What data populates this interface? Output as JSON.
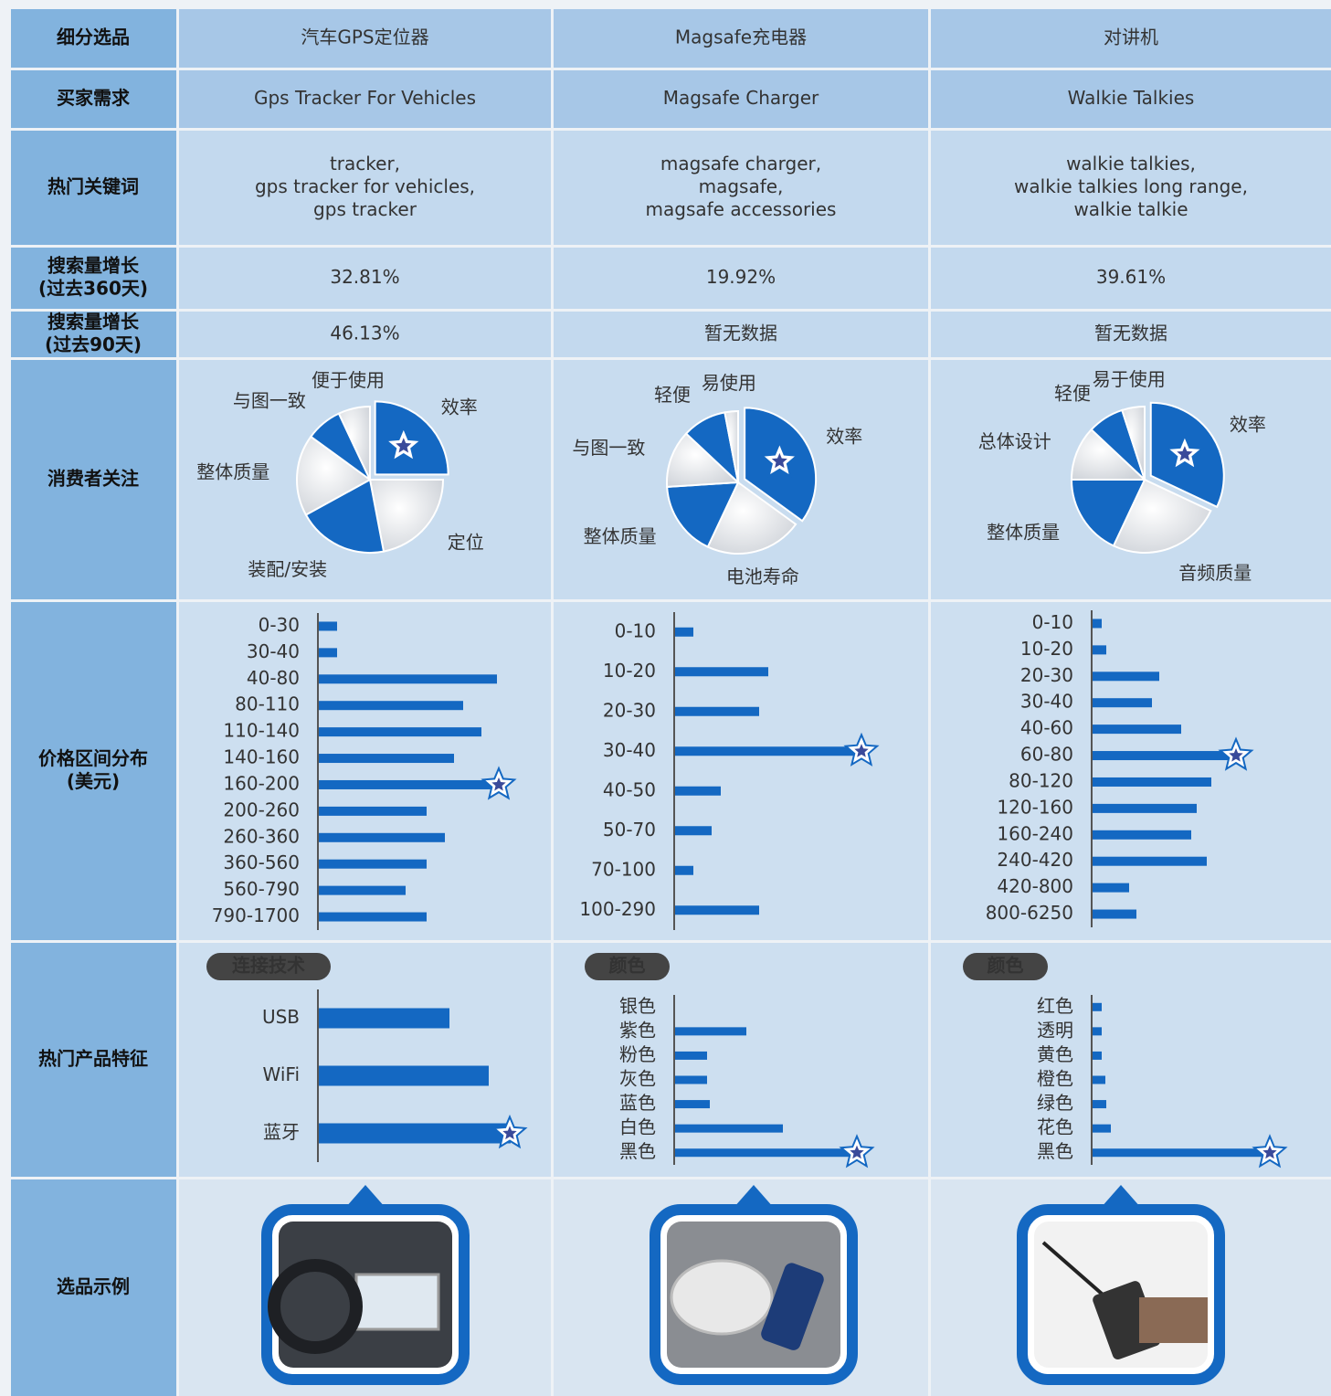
{
  "table": {
    "row_headers": [
      [
        "细分选品"
      ],
      [
        "买家需求"
      ],
      [
        "热门关键词"
      ],
      [
        "搜索量增长",
        "(过去360天)"
      ],
      [
        "搜索量增长",
        "(过去90天)"
      ],
      [
        "消费者关注"
      ],
      [
        "价格区间分布",
        "(美元)"
      ],
      [
        "热门产品特征"
      ],
      [
        "选品示例"
      ]
    ],
    "columns": [
      {
        "name": "汽车GPS定位器",
        "demand": "Gps Tracker For Vehicles",
        "keywords": [
          "tracker,",
          "gps tracker for vehicles,",
          "gps tracker"
        ],
        "growth_360": "32.81%",
        "growth_90": "46.13%",
        "focus": {
          "type": "pie",
          "categories": [
            "效率",
            "定位",
            "装配/安装",
            "整体质量",
            "与图一致",
            "便于使用"
          ],
          "values": [
            25,
            22,
            20,
            18,
            8,
            7
          ],
          "colors": [
            "#1468c2",
            "#e4e6ea",
            "#1468c2",
            "#e4e6ea",
            "#1468c2",
            "#e4e6ea"
          ]
        },
        "price": {
          "type": "bar",
          "categories": [
            "0-30",
            "30-40",
            "40-80",
            "80-110",
            "110-140",
            "140-160",
            "160-200",
            "200-260",
            "260-360",
            "360-560",
            "560-790",
            "790-1700"
          ],
          "values": [
            20,
            20,
            195,
            158,
            178,
            148,
            198,
            118,
            138,
            118,
            95,
            118
          ],
          "xlim": [
            0,
            220
          ],
          "color": "#1468c2"
        },
        "features": {
          "title": "连接技术",
          "type": "bar",
          "categories": [
            "USB",
            "WiFi",
            "蓝牙"
          ],
          "values": [
            143,
            186,
            210
          ],
          "xlim": [
            0,
            220
          ],
          "color": "#1468c2"
        }
      },
      {
        "name": "Magsafe充电器",
        "demand": "Magsafe Charger",
        "keywords": [
          "magsafe charger,",
          "magsafe,",
          "magsafe accessories"
        ],
        "growth_360": "19.92%",
        "growth_90": "暂无数据",
        "focus": {
          "type": "pie",
          "categories": [
            "效率",
            "电池寿命",
            "整体质量",
            "与图一致",
            "轻便",
            "易使用"
          ],
          "values": [
            35,
            22,
            17,
            13,
            10,
            3
          ],
          "colors": [
            "#1468c2",
            "#e4e6ea",
            "#1468c2",
            "#e4e6ea",
            "#1468c2",
            "#e4e6ea"
          ]
        },
        "price": {
          "type": "bar",
          "categories": [
            "0-10",
            "10-20",
            "20-30",
            "30-40",
            "40-50",
            "50-70",
            "70-100",
            "100-290"
          ],
          "values": [
            20,
            102,
            92,
            205,
            50,
            40,
            20,
            92
          ],
          "xlim": [
            0,
            220
          ],
          "color": "#1468c2"
        },
        "features": {
          "title": "颜色",
          "type": "bar",
          "categories": [
            "银色",
            "紫色",
            "粉色",
            "灰色",
            "蓝色",
            "白色",
            "黑色"
          ],
          "values": [
            0,
            78,
            35,
            35,
            38,
            118,
            200
          ],
          "xlim": [
            0,
            220
          ],
          "color": "#1468c2"
        }
      },
      {
        "name": "对讲机",
        "demand": "Walkie Talkies",
        "keywords": [
          "walkie talkies,",
          "walkie talkies long range,",
          "walkie talkie"
        ],
        "growth_360": "39.61%",
        "growth_90": "暂无数据",
        "focus": {
          "type": "pie",
          "categories": [
            "效率",
            "音频质量",
            "整体质量",
            "总体设计",
            "轻便",
            "易于使用"
          ],
          "values": [
            32,
            25,
            18,
            12,
            8,
            5
          ],
          "colors": [
            "#1468c2",
            "#e4e6ea",
            "#1468c2",
            "#e4e6ea",
            "#1468c2",
            "#e4e6ea"
          ]
        },
        "price": {
          "type": "bar",
          "categories": [
            "0-10",
            "10-20",
            "20-30",
            "30-40",
            "40-60",
            "60-80",
            "80-120",
            "120-160",
            "160-240",
            "240-420",
            "420-800",
            "800-6250"
          ],
          "values": [
            10,
            15,
            73,
            65,
            97,
            158,
            130,
            114,
            108,
            125,
            40,
            48
          ],
          "xlim": [
            0,
            220
          ],
          "color": "#1468c2"
        },
        "features": {
          "title": "颜色",
          "type": "bar",
          "categories": [
            "红色",
            "透明",
            "黄色",
            "橙色",
            "绿色",
            "花色",
            "黑色"
          ],
          "values": [
            10,
            10,
            10,
            14,
            15,
            20,
            195
          ],
          "xlim": [
            0,
            220
          ],
          "color": "#1468c2"
        }
      }
    ]
  }
}
